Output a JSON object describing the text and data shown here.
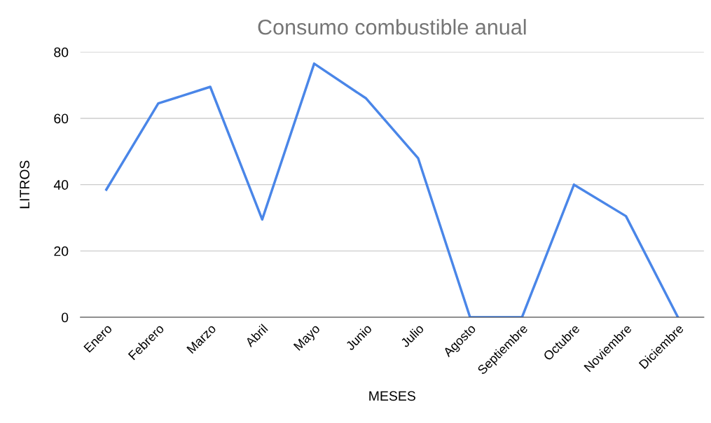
{
  "chart_data": {
    "type": "line",
    "title": "Consumo combustible anual",
    "xlabel": "MESES",
    "ylabel": "LITROS",
    "categories": [
      "Enero",
      "Febrero",
      "Marzo",
      "Abril",
      "Mayo",
      "Junio",
      "Julio",
      "Agosto",
      "Septiembre",
      "Octubre",
      "Noviembre",
      "Diciembre"
    ],
    "series": [
      {
        "color": "#4a86e8",
        "values": [
          38.5,
          64.5,
          69.5,
          29.5,
          76.5,
          66,
          48,
          0,
          0,
          40,
          30.5,
          0
        ]
      }
    ],
    "ylim": [
      0,
      80
    ],
    "yticks": [
      0,
      20,
      40,
      60,
      80
    ],
    "grid": "y",
    "legend": false,
    "marker": "none",
    "line_style": "solid"
  }
}
